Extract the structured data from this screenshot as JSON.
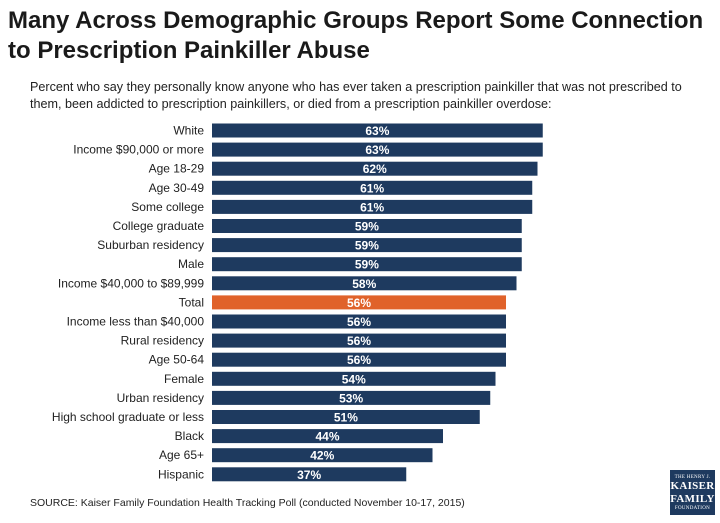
{
  "header": {
    "title": "Many Across Demographic Groups Report Some Connection to Prescription Painkiller Abuse",
    "subtitle": "Percent who say they personally know anyone who has ever taken a prescription painkiller that was not prescribed to them, been addicted to prescription painkillers, or died from a prescription painkiller overdose:"
  },
  "colors": {
    "bar": "#1e3a5f",
    "highlight": "#e0622a",
    "label_text": "#ffffff"
  },
  "chart_data": {
    "type": "bar",
    "orientation": "horizontal",
    "categories": [
      "White",
      "Income $90,000 or more",
      "Age 18-29",
      "Age 30-49",
      "Some college",
      "College graduate",
      "Suburban residency",
      "Male",
      "Income $40,000 to $89,999",
      "Total",
      "Income less than $40,000",
      "Rural residency",
      "Age 50-64",
      "Female",
      "Urban residency",
      "High school graduate or less",
      "Black",
      "Age 65+",
      "Hispanic"
    ],
    "values": [
      63,
      63,
      62,
      61,
      61,
      59,
      59,
      59,
      58,
      56,
      56,
      56,
      56,
      54,
      53,
      51,
      44,
      42,
      37
    ],
    "value_labels": [
      "63%",
      "63%",
      "62%",
      "61%",
      "61%",
      "59%",
      "59%",
      "59%",
      "58%",
      "56%",
      "56%",
      "56%",
      "56%",
      "54%",
      "53%",
      "51%",
      "44%",
      "42%",
      "37%"
    ],
    "highlight": "Total",
    "grid": false,
    "legend": "none"
  },
  "footer": {
    "source": "SOURCE: Kaiser Family Foundation Health Tracking Poll (conducted November 10-17, 2015)",
    "logo_lines": [
      "THE HENRY J.",
      "KAISER",
      "FAMILY",
      "FOUNDATION"
    ]
  }
}
